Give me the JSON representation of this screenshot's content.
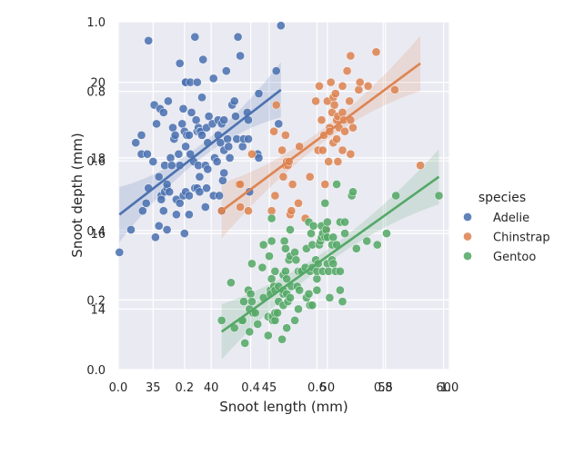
{
  "chart_data": {
    "type": "scatter",
    "title": "",
    "xlabel": "Snoot length (mm)",
    "ylabel": "Snoot depth (mm)",
    "xlim": [
      32,
      60.5
    ],
    "ylim": [
      12.4,
      21.6
    ],
    "xticks": [
      "35",
      "40",
      "45",
      "50",
      "55",
      "60"
    ],
    "yticks": [
      "14",
      "16",
      "18",
      "20"
    ],
    "overlay_axis_ticks": [
      "0.0",
      "0.2",
      "0.4",
      "0.6",
      "0.8",
      "1.0"
    ],
    "grid": true,
    "background": "#eaeaf2",
    "legend": {
      "title": "species",
      "placement": "right",
      "entries": [
        "Adelie",
        "Chinstrap",
        "Gentoo"
      ]
    },
    "series": [
      {
        "name": "Adelie",
        "color": "#4c72b0",
        "regression": {
          "x": [
            32.1,
            46.0
          ],
          "y": [
            16.5,
            19.8
          ]
        },
        "points": [
          [
            32.1,
            15.5
          ],
          [
            33.1,
            16.1
          ],
          [
            33.5,
            18.4
          ],
          [
            34.0,
            18.1
          ],
          [
            34.0,
            18.6
          ],
          [
            34.1,
            16.6
          ],
          [
            34.4,
            16.8
          ],
          [
            34.5,
            18.1
          ],
          [
            34.6,
            17.2
          ],
          [
            34.6,
            21.1
          ],
          [
            35.0,
            17.9
          ],
          [
            35.1,
            19.4
          ],
          [
            35.2,
            15.9
          ],
          [
            35.3,
            18.9
          ],
          [
            35.5,
            17.5
          ],
          [
            35.5,
            16.2
          ],
          [
            35.6,
            19.3
          ],
          [
            35.7,
            17.0
          ],
          [
            35.7,
            16.9
          ],
          [
            35.9,
            16.6
          ],
          [
            35.9,
            19.2
          ],
          [
            36.0,
            17.1
          ],
          [
            36.0,
            17.8
          ],
          [
            36.2,
            16.1
          ],
          [
            36.2,
            17.2
          ],
          [
            36.2,
            17.3
          ],
          [
            36.3,
            19.5
          ],
          [
            36.4,
            17.1
          ],
          [
            36.5,
            18.0
          ],
          [
            36.6,
            17.8
          ],
          [
            36.7,
            18.8
          ],
          [
            36.8,
            18.5
          ],
          [
            36.9,
            18.6
          ],
          [
            37.0,
            16.9
          ],
          [
            37.0,
            16.5
          ],
          [
            37.2,
            18.1
          ],
          [
            37.3,
            17.8
          ],
          [
            37.3,
            16.8
          ],
          [
            37.3,
            20.5
          ],
          [
            37.5,
            18.9
          ],
          [
            37.6,
            19.3
          ],
          [
            37.6,
            17.0
          ],
          [
            37.7,
            18.7
          ],
          [
            37.7,
            16.0
          ],
          [
            37.8,
            17.1
          ],
          [
            37.8,
            18.3
          ],
          [
            37.8,
            20.0
          ],
          [
            37.8,
            20.0
          ],
          [
            37.9,
            18.6
          ],
          [
            38.1,
            18.6
          ],
          [
            38.1,
            16.5
          ],
          [
            38.1,
            17.0
          ],
          [
            38.2,
            18.1
          ],
          [
            38.2,
            20.0
          ],
          [
            38.3,
            19.2
          ],
          [
            38.5,
            17.9
          ],
          [
            38.6,
            21.2
          ],
          [
            38.6,
            17.2
          ],
          [
            38.7,
            19.0
          ],
          [
            38.8,
            17.2
          ],
          [
            38.8,
            18.7
          ],
          [
            38.8,
            20.0
          ],
          [
            38.9,
            17.8
          ],
          [
            38.9,
            18.8
          ],
          [
            39.0,
            17.1
          ],
          [
            39.0,
            17.5
          ],
          [
            39.0,
            18.7
          ],
          [
            39.1,
            18.7
          ],
          [
            39.2,
            19.6
          ],
          [
            39.2,
            18.6
          ],
          [
            39.3,
            20.6
          ],
          [
            39.5,
            16.7
          ],
          [
            39.5,
            17.8
          ],
          [
            39.6,
            17.2
          ],
          [
            39.6,
            18.8
          ],
          [
            39.7,
            17.7
          ],
          [
            39.7,
            18.4
          ],
          [
            39.8,
            19.1
          ],
          [
            40.1,
            18.9
          ],
          [
            40.2,
            17.0
          ],
          [
            40.2,
            20.1
          ],
          [
            40.3,
            18.0
          ],
          [
            40.5,
            17.9
          ],
          [
            40.6,
            18.6
          ],
          [
            40.6,
            19.0
          ],
          [
            40.7,
            17.0
          ],
          [
            40.8,
            18.4
          ],
          [
            40.9,
            16.6
          ],
          [
            40.9,
            18.9
          ],
          [
            41.0,
            17.4
          ],
          [
            41.1,
            17.6
          ],
          [
            41.1,
            18.2
          ],
          [
            41.1,
            19.0
          ],
          [
            41.3,
            20.3
          ],
          [
            41.4,
            18.5
          ],
          [
            41.5,
            18.3
          ],
          [
            41.6,
            18.0
          ],
          [
            41.8,
            19.4
          ],
          [
            42.0,
            19.5
          ],
          [
            42.1,
            19.1
          ],
          [
            42.2,
            18.5
          ],
          [
            42.3,
            21.2
          ],
          [
            42.5,
            20.7
          ],
          [
            42.7,
            18.3
          ],
          [
            42.8,
            18.5
          ],
          [
            43.1,
            19.2
          ],
          [
            43.2,
            18.5
          ],
          [
            43.2,
            19.0
          ],
          [
            43.3,
            17.1
          ],
          [
            44.0,
            18.1
          ],
          [
            44.1,
            18.0
          ],
          [
            44.1,
            19.7
          ],
          [
            45.6,
            20.3
          ],
          [
            45.8,
            18.9
          ],
          [
            46.0,
            21.5
          ]
        ]
      },
      {
        "name": "Chinstrap",
        "color": "#dd8452",
        "regression": {
          "x": [
            40.9,
            58.0
          ],
          "y": [
            16.6,
            20.5
          ]
        },
        "points": [
          [
            40.9,
            16.6
          ],
          [
            42.4,
            17.3
          ],
          [
            42.5,
            16.7
          ],
          [
            42.5,
            17.3
          ],
          [
            43.2,
            16.6
          ],
          [
            43.5,
            18.1
          ],
          [
            45.2,
            16.6
          ],
          [
            45.4,
            18.7
          ],
          [
            45.5,
            17.0
          ],
          [
            45.6,
            19.4
          ],
          [
            46.1,
            18.2
          ],
          [
            46.2,
            17.5
          ],
          [
            46.4,
            18.6
          ],
          [
            46.4,
            17.8
          ],
          [
            46.5,
            17.9
          ],
          [
            46.6,
            17.8
          ],
          [
            46.7,
            17.9
          ],
          [
            46.8,
            16.5
          ],
          [
            46.9,
            16.6
          ],
          [
            47.0,
            17.3
          ],
          [
            47.5,
            16.8
          ],
          [
            47.6,
            18.3
          ],
          [
            48.1,
            16.4
          ],
          [
            48.5,
            17.5
          ],
          [
            49.0,
            19.5
          ],
          [
            49.2,
            18.2
          ],
          [
            49.3,
            19.9
          ],
          [
            49.5,
            19.0
          ],
          [
            49.6,
            18.2
          ],
          [
            49.7,
            18.6
          ],
          [
            49.8,
            17.3
          ],
          [
            49.9,
            16.1
          ],
          [
            50.0,
            19.5
          ],
          [
            50.1,
            17.9
          ],
          [
            50.2,
            18.8
          ],
          [
            50.2,
            18.7
          ],
          [
            50.3,
            20.0
          ],
          [
            50.4,
            19.2
          ],
          [
            50.5,
            18.4
          ],
          [
            50.5,
            19.6
          ],
          [
            50.6,
            19.4
          ],
          [
            50.7,
            19.7
          ],
          [
            50.8,
            18.5
          ],
          [
            50.8,
            19.0
          ],
          [
            50.9,
            17.9
          ],
          [
            50.9,
            19.1
          ],
          [
            51.0,
            18.8
          ],
          [
            51.3,
            18.2
          ],
          [
            51.3,
            19.2
          ],
          [
            51.3,
            19.9
          ],
          [
            51.4,
            19.0
          ],
          [
            51.5,
            18.7
          ],
          [
            51.7,
            20.3
          ],
          [
            51.9,
            19.5
          ],
          [
            52.0,
            18.1
          ],
          [
            52.0,
            19.0
          ],
          [
            52.0,
            20.7
          ],
          [
            52.2,
            18.8
          ],
          [
            52.7,
            19.8
          ],
          [
            52.8,
            20.0
          ],
          [
            53.5,
            19.9
          ],
          [
            54.2,
            20.8
          ],
          [
            55.8,
            19.8
          ],
          [
            58.0,
            17.8
          ]
        ]
      },
      {
        "name": "Gentoo",
        "color": "#55a868",
        "regression": {
          "x": [
            40.9,
            59.6
          ],
          "y": [
            13.4,
            17.5
          ]
        },
        "points": [
          [
            40.9,
            13.7
          ],
          [
            41.7,
            14.7
          ],
          [
            42.0,
            13.5
          ],
          [
            42.6,
            13.7
          ],
          [
            42.7,
            13.7
          ],
          [
            42.8,
            14.2
          ],
          [
            42.9,
            13.1
          ],
          [
            43.2,
            14.5
          ],
          [
            43.3,
            13.4
          ],
          [
            43.3,
            14.0
          ],
          [
            43.4,
            14.4
          ],
          [
            43.5,
            14.2
          ],
          [
            43.5,
            15.2
          ],
          [
            43.6,
            13.9
          ],
          [
            43.8,
            13.9
          ],
          [
            44.0,
            13.6
          ],
          [
            44.4,
            15.1
          ],
          [
            44.5,
            14.3
          ],
          [
            44.5,
            15.7
          ],
          [
            44.9,
            13.3
          ],
          [
            44.9,
            13.8
          ],
          [
            45.0,
            15.4
          ],
          [
            45.1,
            14.5
          ],
          [
            45.1,
            14.4
          ],
          [
            45.2,
            13.8
          ],
          [
            45.2,
            14.8
          ],
          [
            45.2,
            15.8
          ],
          [
            45.2,
            16.4
          ],
          [
            45.3,
            13.7
          ],
          [
            45.3,
            13.8
          ],
          [
            45.4,
            14.6
          ],
          [
            45.5,
            13.7
          ],
          [
            45.5,
            13.9
          ],
          [
            45.5,
            14.5
          ],
          [
            45.5,
            15.0
          ],
          [
            45.7,
            13.9
          ],
          [
            45.8,
            14.2
          ],
          [
            45.8,
            14.6
          ],
          [
            46.1,
            13.2
          ],
          [
            46.2,
            14.1
          ],
          [
            46.2,
            14.4
          ],
          [
            46.2,
            14.5
          ],
          [
            46.2,
            14.9
          ],
          [
            46.3,
            15.8
          ],
          [
            46.4,
            15.0
          ],
          [
            46.4,
            15.6
          ],
          [
            46.5,
            13.5
          ],
          [
            46.5,
            14.4
          ],
          [
            46.5,
            14.8
          ],
          [
            46.6,
            14.2
          ],
          [
            46.7,
            15.3
          ],
          [
            46.8,
            14.3
          ],
          [
            46.8,
            15.4
          ],
          [
            46.8,
            16.1
          ],
          [
            46.9,
            14.6
          ],
          [
            47.2,
            13.7
          ],
          [
            47.2,
            15.5
          ],
          [
            47.3,
            15.3
          ],
          [
            47.4,
            14.6
          ],
          [
            47.5,
            14.0
          ],
          [
            47.5,
            15.0
          ],
          [
            47.6,
            14.5
          ],
          [
            47.7,
            15.0
          ],
          [
            47.8,
            15.0
          ],
          [
            48.1,
            15.1
          ],
          [
            48.2,
            14.3
          ],
          [
            48.2,
            15.6
          ],
          [
            48.4,
            14.4
          ],
          [
            48.4,
            16.3
          ],
          [
            48.5,
            14.1
          ],
          [
            48.5,
            15.0
          ],
          [
            48.6,
            16.0
          ],
          [
            48.7,
            14.1
          ],
          [
            48.7,
            15.1
          ],
          [
            48.7,
            15.7
          ],
          [
            48.8,
            16.2
          ],
          [
            49.0,
            15.3
          ],
          [
            49.1,
            14.5
          ],
          [
            49.1,
            14.8
          ],
          [
            49.1,
            15.0
          ],
          [
            49.2,
            15.2
          ],
          [
            49.3,
            15.7
          ],
          [
            49.4,
            15.8
          ],
          [
            49.5,
            15.9
          ],
          [
            49.5,
            16.2
          ],
          [
            49.6,
            15.0
          ],
          [
            49.6,
            16.0
          ],
          [
            49.8,
            15.9
          ],
          [
            49.8,
            16.8
          ],
          [
            49.9,
            16.1
          ],
          [
            50.0,
            15.2
          ],
          [
            50.0,
            15.9
          ],
          [
            50.0,
            16.3
          ],
          [
            50.1,
            15.0
          ],
          [
            50.2,
            14.3
          ],
          [
            50.4,
            15.3
          ],
          [
            50.4,
            15.7
          ],
          [
            50.5,
            15.2
          ],
          [
            50.5,
            15.9
          ],
          [
            50.7,
            15.0
          ],
          [
            50.8,
            15.7
          ],
          [
            50.8,
            17.3
          ],
          [
            51.1,
            14.5
          ],
          [
            51.1,
            15.0
          ],
          [
            51.1,
            16.3
          ],
          [
            51.3,
            14.2
          ],
          [
            51.5,
            16.3
          ],
          [
            51.5,
            16.0
          ],
          [
            52.1,
            17.0
          ],
          [
            52.2,
            17.1
          ],
          [
            52.5,
            15.6
          ],
          [
            53.4,
            15.8
          ],
          [
            54.3,
            15.7
          ],
          [
            55.1,
            16.0
          ],
          [
            55.9,
            17.0
          ],
          [
            59.6,
            17.0
          ]
        ]
      }
    ]
  }
}
